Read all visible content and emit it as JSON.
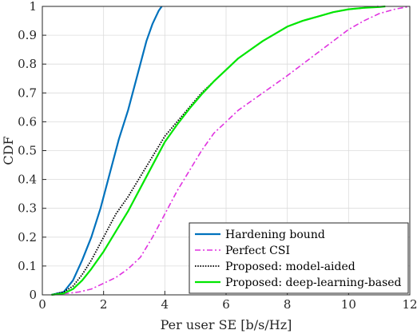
{
  "chart_data": {
    "type": "line",
    "title": "",
    "xlabel": "Per user SE [b/s/Hz]",
    "ylabel": "CDF",
    "xlim": [
      0,
      12
    ],
    "ylim": [
      0,
      1
    ],
    "xticks": [
      "0",
      "2",
      "4",
      "6",
      "8",
      "10",
      "12"
    ],
    "yticks": [
      "0",
      "0.1",
      "0.2",
      "0.3",
      "0.4",
      "0.5",
      "0.6",
      "0.7",
      "0.8",
      "0.9",
      "1"
    ],
    "grid": true,
    "legend_position": "bottom-right",
    "series": [
      {
        "name": "Hardening bound",
        "color": "#0072BD",
        "style": "solid",
        "x": [
          0.3,
          0.7,
          1.0,
          1.3,
          1.6,
          1.9,
          2.2,
          2.5,
          2.8,
          3.0,
          3.2,
          3.4,
          3.6,
          3.8,
          3.9
        ],
        "y": [
          0.0,
          0.01,
          0.05,
          0.12,
          0.2,
          0.3,
          0.42,
          0.54,
          0.64,
          0.72,
          0.8,
          0.88,
          0.94,
          0.985,
          1.0
        ]
      },
      {
        "name": "Perfect CSI",
        "color": "#E033E0",
        "style": "dashdot",
        "x": [
          0.3,
          0.8,
          1.2,
          1.6,
          2.0,
          2.4,
          2.8,
          3.2,
          3.6,
          4.0,
          4.4,
          4.8,
          5.2,
          5.6,
          6.0,
          6.4,
          6.8,
          7.2,
          7.6,
          8.0,
          8.5,
          9.0,
          9.5,
          10.0,
          10.5,
          11.0,
          11.5,
          12.0
        ],
        "y": [
          0.0,
          0.005,
          0.01,
          0.02,
          0.04,
          0.06,
          0.09,
          0.13,
          0.2,
          0.28,
          0.36,
          0.43,
          0.5,
          0.56,
          0.6,
          0.64,
          0.67,
          0.7,
          0.73,
          0.76,
          0.8,
          0.84,
          0.88,
          0.92,
          0.95,
          0.975,
          0.99,
          1.0
        ]
      },
      {
        "name": "Proposed:  model-aided",
        "color": "#000000",
        "style": "dotted",
        "x": [
          0.3,
          0.7,
          1.0,
          1.3,
          1.6,
          2.0,
          2.4,
          2.8,
          3.2,
          3.6,
          4.0,
          4.4,
          4.8,
          5.2,
          5.6,
          6.0,
          6.4,
          6.8,
          7.2,
          7.6,
          8.0,
          8.5,
          9.0,
          9.5,
          10.0,
          10.5,
          11.0
        ],
        "y": [
          0.0,
          0.01,
          0.03,
          0.07,
          0.12,
          0.2,
          0.28,
          0.34,
          0.41,
          0.48,
          0.55,
          0.6,
          0.65,
          0.7,
          0.74,
          0.78,
          0.82,
          0.85,
          0.88,
          0.905,
          0.93,
          0.95,
          0.965,
          0.98,
          0.99,
          0.995,
          1.0
        ]
      },
      {
        "name": "Proposed:  deep-learning-based",
        "color": "#00E600",
        "style": "solid",
        "x": [
          0.3,
          0.7,
          1.0,
          1.3,
          1.6,
          2.0,
          2.4,
          2.8,
          3.2,
          3.6,
          4.0,
          4.4,
          4.8,
          5.2,
          5.6,
          6.0,
          6.4,
          6.8,
          7.2,
          7.6,
          8.0,
          8.5,
          9.0,
          9.5,
          10.0,
          10.5,
          11.0,
          11.2
        ],
        "y": [
          0.0,
          0.005,
          0.02,
          0.05,
          0.09,
          0.15,
          0.22,
          0.29,
          0.37,
          0.45,
          0.53,
          0.59,
          0.645,
          0.695,
          0.74,
          0.78,
          0.82,
          0.85,
          0.88,
          0.905,
          0.93,
          0.95,
          0.965,
          0.98,
          0.99,
          0.995,
          0.998,
          1.0
        ]
      }
    ]
  }
}
